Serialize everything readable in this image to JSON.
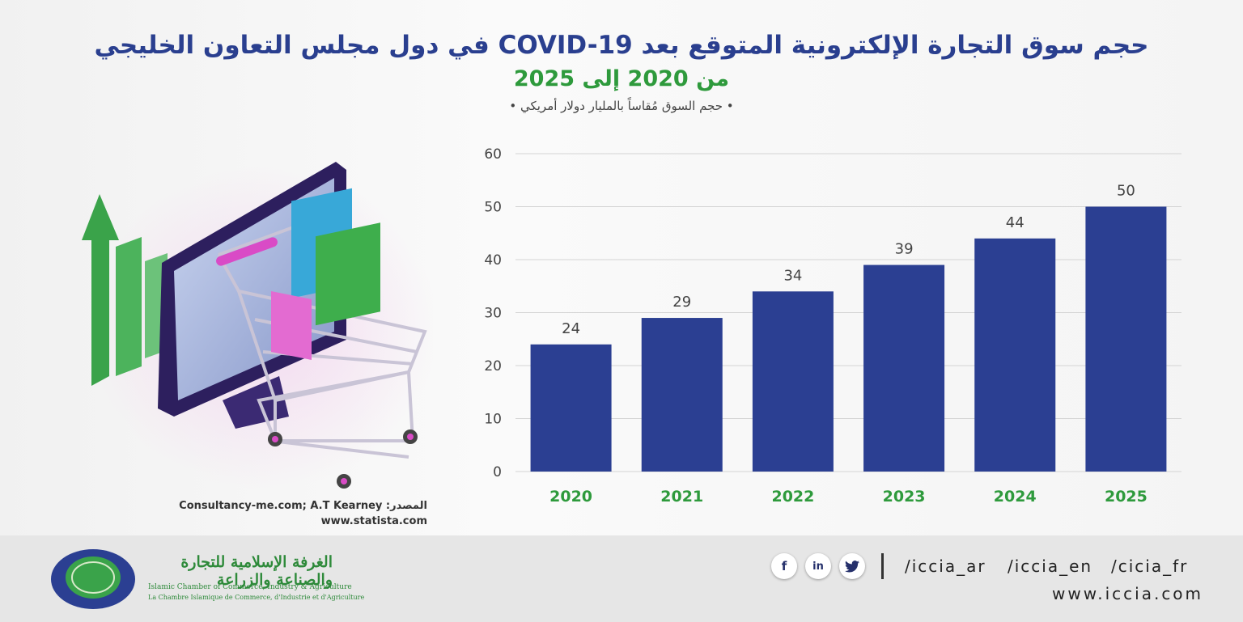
{
  "header": {
    "title_line1": "حجم سوق التجارة الإلكترونية المتوقع بعد COVID-19 في دول مجلس التعاون الخليجي",
    "title_line2": "من 2020 إلى 2025",
    "subtitle": "• حجم السوق مُقاساً بالمليار دولار أمريكي •"
  },
  "chart_data": {
    "type": "bar",
    "categories": [
      "2020",
      "2021",
      "2022",
      "2023",
      "2024",
      "2025"
    ],
    "values": [
      24,
      29,
      34,
      39,
      44,
      50
    ],
    "ylim": [
      0,
      60
    ],
    "yticks": [
      0,
      10,
      20,
      30,
      40,
      50,
      60
    ],
    "ylabel": "حجم السوق مُقاساً بالمليار دولار أمريكي",
    "bar_color": "#2b3f92",
    "label_color": "#2e9a3c",
    "grid": true
  },
  "source": {
    "line1": "المصدر: Consultancy-me.com; A.T Kearney",
    "line2": "www.statista.com"
  },
  "footer": {
    "social": [
      "f",
      "in",
      "twitter"
    ],
    "handles": [
      "/iccia_ar",
      "/iccia_en",
      "/cicia_fr"
    ],
    "website": "www.iccia.com",
    "org_ar": "الغرفة الإسلامية للتجارة والصناعة والزراعة",
    "org_en": "Islamic Chamber of Commerce, Industry & Agriculture",
    "org_fr": "La Chambre Islamique de Commerce, d'Industrie et d'Agriculture"
  },
  "colors": {
    "title_blue": "#2a3f8f",
    "title_green": "#2e9a3c"
  }
}
